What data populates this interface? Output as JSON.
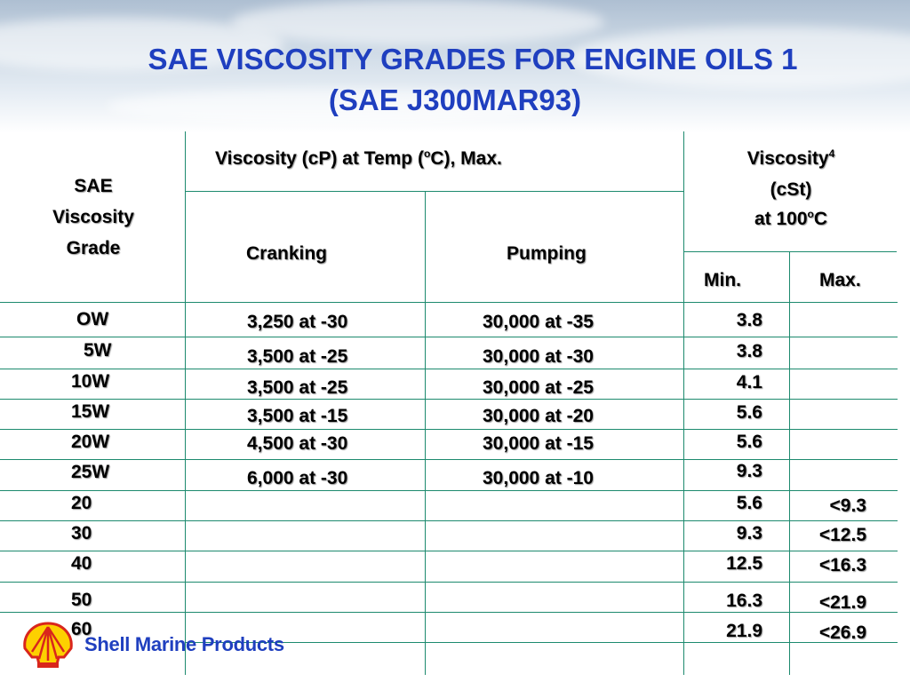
{
  "title": {
    "line1": "SAE VISCOSITY GRADES FOR ENGINE OILS 1",
    "line2": "(SAE J300MAR93)"
  },
  "header": {
    "sae_line1": "SAE",
    "sae_line2": "Viscosity",
    "sae_line3": "Grade",
    "visc_cp_prefix": "Viscosity (cP) at Temp (",
    "visc_cp_sup": "o",
    "visc_cp_suffix": "C), Max.",
    "cranking": "Cranking",
    "pumping": "Pumping",
    "visc_cst_line1": "Viscosity",
    "visc_cst_sup1": "4",
    "visc_cst_line2": "(cSt)",
    "visc_cst_line3_prefix": "at 100",
    "visc_cst_sup2": "o",
    "visc_cst_line3_suffix": "C",
    "min": "Min.",
    "max": "Max."
  },
  "rows": [
    {
      "grade": "OW",
      "cranking": "3,250 at -30",
      "pumping": "30,000 at -35",
      "min": "3.8",
      "max": ""
    },
    {
      "grade": "5W",
      "cranking": "3,500 at -25",
      "pumping": "30,000 at -30",
      "min": "3.8",
      "max": ""
    },
    {
      "grade": "10W",
      "cranking": "3,500 at -25",
      "pumping": "30,000 at -25",
      "min": "4.1",
      "max": ""
    },
    {
      "grade": "15W",
      "cranking": "3,500 at -15",
      "pumping": "30,000 at -20",
      "min": "5.6",
      "max": ""
    },
    {
      "grade": "20W",
      "cranking": "4,500 at -30",
      "pumping": "30,000 at -15",
      "min": "5.6",
      "max": ""
    },
    {
      "grade": "25W",
      "cranking": "6,000 at -30",
      "pumping": "30,000 at -10",
      "min": "9.3",
      "max": ""
    },
    {
      "grade": "20",
      "cranking": "",
      "pumping": "",
      "min": "5.6",
      "max": "<9.3"
    },
    {
      "grade": "30",
      "cranking": "",
      "pumping": "",
      "min": "9.3",
      "max": "<12.5"
    },
    {
      "grade": "40",
      "cranking": "",
      "pumping": "",
      "min": "12.5",
      "max": "<16.3"
    },
    {
      "grade": "50",
      "cranking": "",
      "pumping": "",
      "min": "16.3",
      "max": "<21.9"
    },
    {
      "grade": "60",
      "cranking": "",
      "pumping": "",
      "min": "21.9",
      "max": "<26.9"
    }
  ],
  "footer": {
    "brand": "Shell Marine Products",
    "logo_icon": "shell-pecten-icon"
  },
  "colors": {
    "title": "#1f3fbf",
    "grid": "#1d8a6e",
    "logo_red": "#d9261c",
    "logo_yellow": "#fdd000"
  }
}
